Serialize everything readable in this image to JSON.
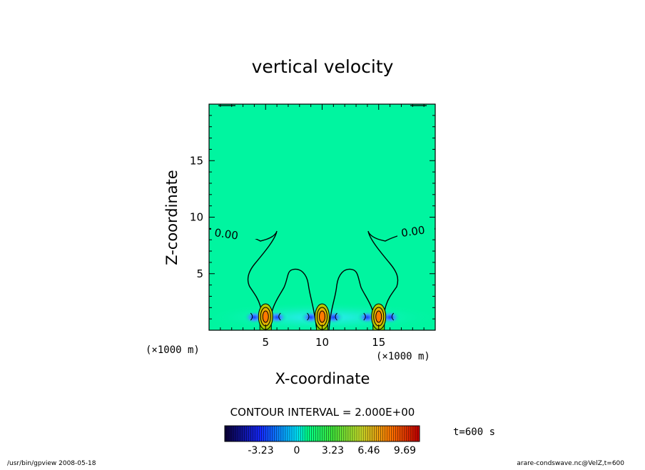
{
  "chart_data": {
    "type": "heatmap",
    "title": "vertical velocity",
    "xlabel": "X-coordinate",
    "ylabel": "Z-coordinate",
    "x_unit": "(×1000 m)",
    "y_unit": "(×1000 m)",
    "xlim": [
      0,
      20
    ],
    "ylim": [
      0,
      20
    ],
    "x_ticks": [
      5,
      10,
      15
    ],
    "y_ticks": [
      5,
      10,
      15
    ],
    "contour_labels": [
      "0.00",
      "0.00"
    ],
    "contour_interval_text": "CONTOUR INTERVAL = 2.000E+00",
    "time_text": "t=600 s",
    "colorbar": {
      "tick_labels": [
        "-3.23",
        "0",
        "3.23",
        "6.46",
        "9.69"
      ],
      "tick_values": [
        -3.23,
        0,
        3.23,
        6.46,
        9.69
      ],
      "range": [
        -6.46,
        11.0
      ]
    },
    "cells": [
      {
        "x": 5,
        "z": 1.2,
        "value": 9.69
      },
      {
        "x": 10,
        "z": 1.2,
        "value": 9.69
      },
      {
        "x": 15,
        "z": 1.2,
        "value": 9.69
      }
    ],
    "colors": {
      "background_field": "#00f5a0",
      "updraft_core": "#ff7a00",
      "downdraft": "#2040ff"
    }
  },
  "footer": {
    "left": "/usr/bin/gpview   2008-05-18",
    "right": "arare-condswave.nc@VelZ,t=600"
  }
}
